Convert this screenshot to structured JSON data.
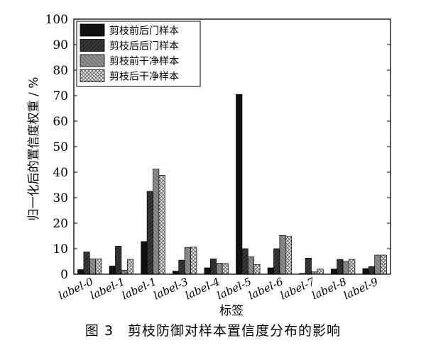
{
  "chart_data": {
    "type": "bar",
    "xlabel": "标签",
    "ylabel": "归一化后的置信度权重 / %",
    "ylim": [
      0,
      100
    ],
    "yticks": [
      0,
      10,
      20,
      30,
      40,
      50,
      60,
      70,
      80,
      90,
      100
    ],
    "categories": [
      "label-0",
      "label-1",
      "label-1",
      "label-3",
      "label-4",
      "label-5",
      "label-6",
      "label-7",
      "label-8",
      "label-9"
    ],
    "legend_position": "top-left",
    "series": [
      {
        "name": "剪枝前后门样本",
        "pattern": "solid-black",
        "values": [
          1.8,
          3.2,
          12.8,
          1.2,
          2.5,
          70.5,
          2.5,
          0.3,
          2.0,
          2.2
        ]
      },
      {
        "name": "剪枝后后门样本",
        "pattern": "dark-hatch",
        "values": [
          8.7,
          11.0,
          32.5,
          5.5,
          6.0,
          10.0,
          10.0,
          6.3,
          5.8,
          3.0
        ]
      },
      {
        "name": "剪枝前干净样本",
        "pattern": "gray-hatch",
        "values": [
          6.0,
          1.6,
          41.2,
          10.5,
          4.3,
          6.8,
          15.2,
          0.9,
          5.0,
          7.5
        ]
      },
      {
        "name": "剪枝后干净样本",
        "pattern": "light-cross",
        "values": [
          6.0,
          5.8,
          38.8,
          10.6,
          4.2,
          3.8,
          14.8,
          2.0,
          5.8,
          7.5
        ]
      }
    ]
  },
  "caption": "图 3　剪枝防御对样本置信度分布的影响"
}
